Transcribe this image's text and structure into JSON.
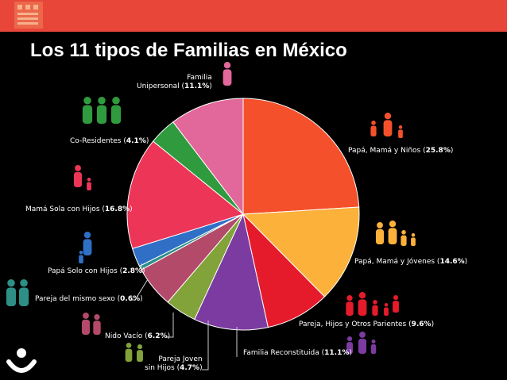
{
  "page": {
    "title": "Los 11 tipos de Familias en México"
  },
  "colors": {
    "topbar": "#e9463a",
    "background": "#000000",
    "text": "#ffffff"
  },
  "chart_data": {
    "type": "pie",
    "title": "Los 11 tipos de Familias en México",
    "unit": "%",
    "slices": [
      {
        "label": "Papá, Mamá y Niños",
        "value": 25.8,
        "pct_text": "25.8%",
        "color": "#f4502b",
        "icon": "family-parents-children-icon"
      },
      {
        "label": "Papá, Mamá y Jóvenes",
        "value": 14.6,
        "pct_text": "14.6%",
        "color": "#fcb13b",
        "icon": "family-parents-youth-icon"
      },
      {
        "label": "Pareja, Hijos y Otros Parientes",
        "value": 9.6,
        "pct_text": "9.6%",
        "color": "#e51b2b",
        "icon": "family-extended-icon"
      },
      {
        "label": "Familia Reconstituida",
        "value": 11.1,
        "pct_text": "11.1%",
        "color": "#7b3ba0",
        "icon": "family-reconstituted-icon"
      },
      {
        "label": "Pareja Joven sin Hijos",
        "value": 4.7,
        "pct_text": "4.7%",
        "color": "#82a23a",
        "icon": "young-couple-icon"
      },
      {
        "label": "Nido Vacío",
        "value": 6.2,
        "pct_text": "6.2%",
        "color": "#b34a6a",
        "icon": "empty-nest-couple-icon"
      },
      {
        "label": "Pareja del mismo sexo",
        "value": 0.6,
        "pct_text": "0.6%",
        "color": "#2d8f86",
        "icon": "same-sex-couple-icon"
      },
      {
        "label": "Papá Solo con Hijos",
        "value": 2.8,
        "pct_text": "2.8%",
        "color": "#2f6fc6",
        "icon": "single-father-icon"
      },
      {
        "label": "Mamá Sola con Hijos",
        "value": 16.8,
        "pct_text": "16.8%",
        "color": "#ed3558",
        "icon": "single-mother-icon"
      },
      {
        "label": "Co-Residentes",
        "value": 4.1,
        "pct_text": "4.1%",
        "color": "#2f9a3e",
        "icon": "co-residents-icon"
      },
      {
        "label": "Familia Unipersonal",
        "value": 11.1,
        "pct_text": "11.1%",
        "color": "#e2679a",
        "icon": "single-person-icon"
      }
    ]
  }
}
